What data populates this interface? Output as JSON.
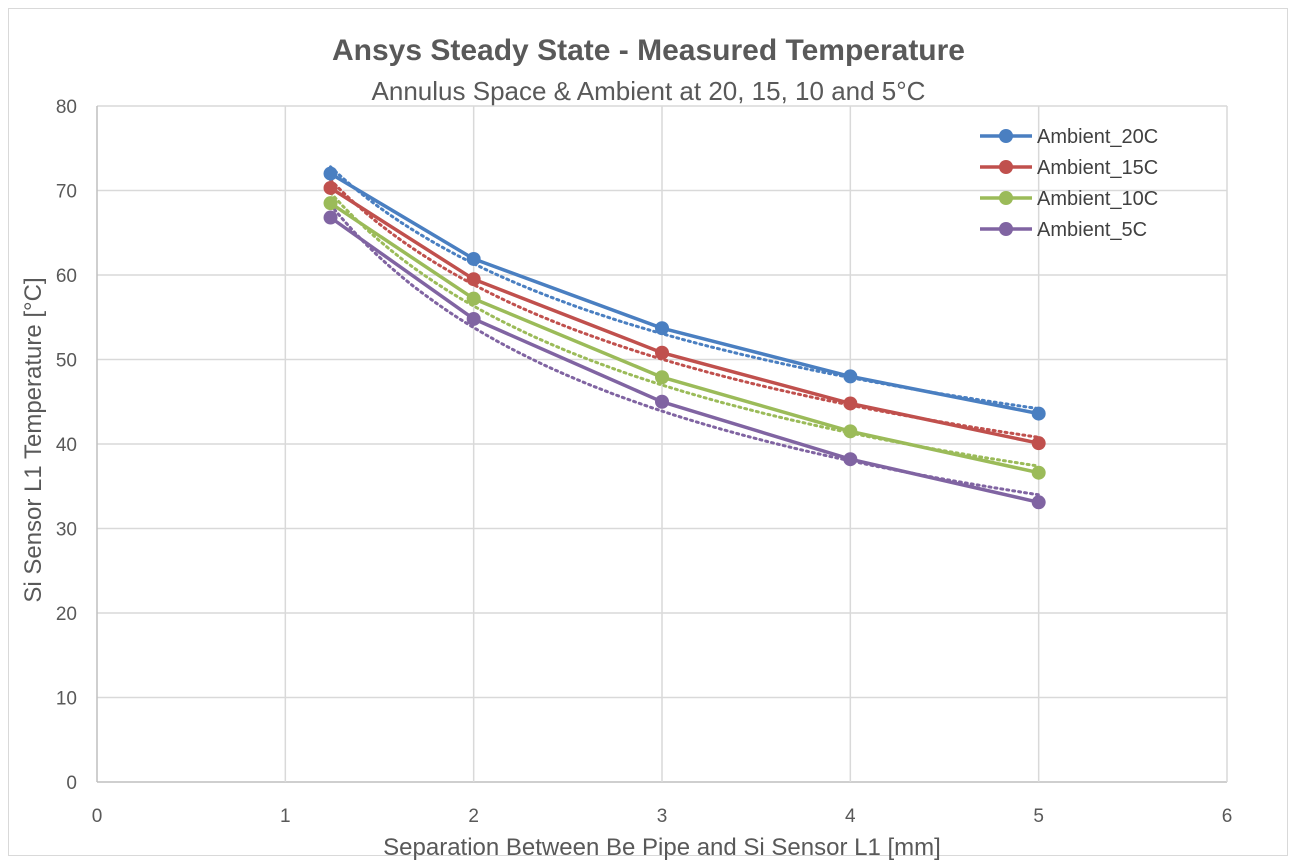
{
  "chart_data": {
    "type": "line",
    "title": "Ansys Steady State - Measured Temperature",
    "subtitle": "Annulus Space & Ambient at 20, 15, 10 and 5°C",
    "xlabel": "Separation Between Be Pipe and Si Sensor L1 [mm]",
    "ylabel": "Si Sensor L1 Temperature [°C]",
    "xlim": [
      0,
      6
    ],
    "ylim": [
      0,
      80
    ],
    "x_ticks": [
      "0",
      "1",
      "2",
      "3",
      "4",
      "5",
      "6"
    ],
    "y_ticks": [
      "0",
      "10",
      "20",
      "30",
      "40",
      "50",
      "60",
      "70",
      "80"
    ],
    "grid": true,
    "legend_position": "top-right",
    "x": [
      1.24,
      2,
      3,
      4,
      5
    ],
    "series": [
      {
        "name": "Ambient_20C",
        "color": "#4a7fc1",
        "values": [
          72.0,
          61.9,
          53.7,
          48.0,
          43.6
        ]
      },
      {
        "name": "Ambient_15C",
        "color": "#c0504d",
        "values": [
          70.3,
          59.5,
          50.8,
          44.8,
          40.1
        ]
      },
      {
        "name": "Ambient_10C",
        "color": "#9bbb59",
        "values": [
          68.5,
          57.2,
          47.9,
          41.5,
          36.6
        ]
      },
      {
        "name": "Ambient_5C",
        "color": "#8064a2",
        "values": [
          66.8,
          54.8,
          45.0,
          38.2,
          33.1
        ]
      }
    ],
    "trendline_style": "dotted"
  }
}
